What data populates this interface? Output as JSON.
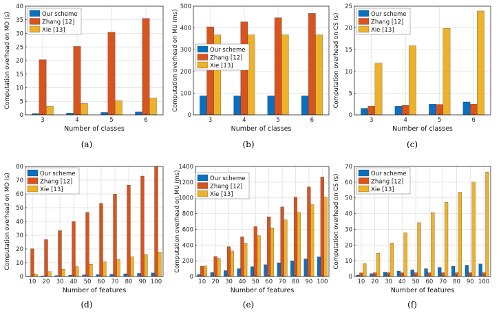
{
  "colors": {
    "our_scheme": "#0b6fbf",
    "zhang": "#d9531e",
    "xie": "#eeb22a",
    "grid": "#dcdcdc",
    "axis": "#262626"
  },
  "chart_data": [
    {
      "type": "bar",
      "caption": "(a)",
      "categories": [
        "3",
        "4",
        "5",
        "6"
      ],
      "series": [
        {
          "name": "Our scheme",
          "values": [
            0.5,
            0.7,
            0.9,
            1.1
          ]
        },
        {
          "name": "Zhang [12]",
          "values": [
            20.3,
            25.2,
            30.4,
            35.5
          ]
        },
        {
          "name": "Xie [13]",
          "values": [
            3.2,
            4.2,
            5.2,
            6.2
          ]
        }
      ],
      "xlabel": "Number of classes",
      "ylabel": "Computation overhead on MO (s)",
      "ylim": [
        0,
        40
      ],
      "yticks": [
        0,
        5,
        10,
        15,
        20,
        25,
        30,
        35,
        40
      ],
      "grid": true,
      "legend": "top-left"
    },
    {
      "type": "bar",
      "caption": "(b)",
      "categories": [
        "3",
        "4",
        "5",
        "6"
      ],
      "series": [
        {
          "name": "Our scheme",
          "values": [
            88,
            88,
            88,
            88
          ]
        },
        {
          "name": "Zhang [12]",
          "values": [
            405,
            428,
            447,
            467
          ]
        },
        {
          "name": "Xie [13]",
          "values": [
            368,
            368,
            368,
            368
          ]
        }
      ],
      "xlabel": "Number of classes",
      "ylabel": "Computation overhead on MU (ms)",
      "ylim": [
        0,
        500
      ],
      "yticks": [
        0,
        100,
        200,
        300,
        400,
        500
      ],
      "grid": true,
      "legend": "left-middle"
    },
    {
      "type": "bar",
      "caption": "(c)",
      "categories": [
        "3",
        "4",
        "5",
        "6"
      ],
      "series": [
        {
          "name": "Our scheme",
          "values": [
            1.5,
            2.0,
            2.5,
            3.0
          ]
        },
        {
          "name": "Zhang [12]",
          "values": [
            2.0,
            2.2,
            2.4,
            2.5
          ]
        },
        {
          "name": "Xie [13]",
          "values": [
            11.9,
            15.9,
            19.9,
            23.9
          ]
        }
      ],
      "xlabel": "Number of classes",
      "ylabel": "Computation overhead on CS (s)",
      "ylim": [
        0,
        25
      ],
      "yticks": [
        0,
        5,
        10,
        15,
        20,
        25
      ],
      "grid": true,
      "legend": "top-left"
    },
    {
      "type": "bar",
      "caption": "(d)",
      "categories": [
        "10",
        "20",
        "30",
        "40",
        "50",
        "60",
        "70",
        "80",
        "90",
        "100"
      ],
      "series": [
        {
          "name": "Our scheme",
          "values": [
            0.3,
            0.5,
            0.7,
            1.0,
            1.2,
            1.4,
            1.7,
            2.0,
            2.3,
            2.6
          ]
        },
        {
          "name": "Zhang [12]",
          "values": [
            20.2,
            26.8,
            33.4,
            40.0,
            46.6,
            53.2,
            59.8,
            66.4,
            73.0,
            80.0
          ]
        },
        {
          "name": "Xie [13]",
          "values": [
            1.8,
            3.6,
            5.4,
            7.1,
            8.9,
            10.7,
            12.5,
            14.3,
            16.0,
            17.8
          ]
        }
      ],
      "xlabel": "Number of features",
      "ylabel": "Computation overhead on MO (s)",
      "ylim": [
        0,
        80
      ],
      "yticks": [
        0,
        10,
        20,
        30,
        40,
        50,
        60,
        70,
        80
      ],
      "grid": true,
      "legend": "top-left"
    },
    {
      "type": "bar",
      "caption": "(e)",
      "categories": [
        "10",
        "20",
        "30",
        "40",
        "50",
        "60",
        "70",
        "80",
        "90",
        "100"
      ],
      "series": [
        {
          "name": "Our scheme",
          "values": [
            25,
            50,
            75,
            100,
            125,
            150,
            175,
            200,
            225,
            250
          ]
        },
        {
          "name": "Zhang [12]",
          "values": [
            130,
            255,
            380,
            505,
            635,
            760,
            885,
            1010,
            1140,
            1265
          ]
        },
        {
          "name": "Xie [13]",
          "values": [
            135,
            230,
            325,
            425,
            520,
            620,
            720,
            815,
            915,
            1010
          ]
        }
      ],
      "xlabel": "Number of features",
      "ylabel": "Computation overhead on MU (ms)",
      "ylim": [
        0,
        1400
      ],
      "yticks": [
        0,
        200,
        400,
        600,
        800,
        1000,
        1200,
        1400
      ],
      "grid": true,
      "legend": "top-left"
    },
    {
      "type": "bar",
      "caption": "(f)",
      "categories": [
        "10",
        "20",
        "30",
        "40",
        "50",
        "60",
        "70",
        "80",
        "90",
        "100"
      ],
      "series": [
        {
          "name": "Our scheme",
          "values": [
            0.9,
            1.8,
            2.7,
            3.5,
            4.3,
            5.0,
            5.8,
            6.5,
            7.2,
            8.0
          ]
        },
        {
          "name": "Zhang [12]",
          "values": [
            2.3,
            2.4,
            2.4,
            2.4,
            2.4,
            2.4,
            2.4,
            2.4,
            2.4,
            2.4
          ]
        },
        {
          "name": "Xie [13]",
          "values": [
            8.2,
            14.8,
            21.3,
            27.8,
            34.2,
            40.7,
            47.1,
            53.6,
            60.0,
            66.4
          ]
        }
      ],
      "xlabel": "Number of features",
      "ylabel": "Computation overhead on CS (s)",
      "ylim": [
        0,
        70
      ],
      "yticks": [
        0,
        10,
        20,
        30,
        40,
        50,
        60,
        70
      ],
      "grid": true,
      "legend": "top-left"
    }
  ]
}
